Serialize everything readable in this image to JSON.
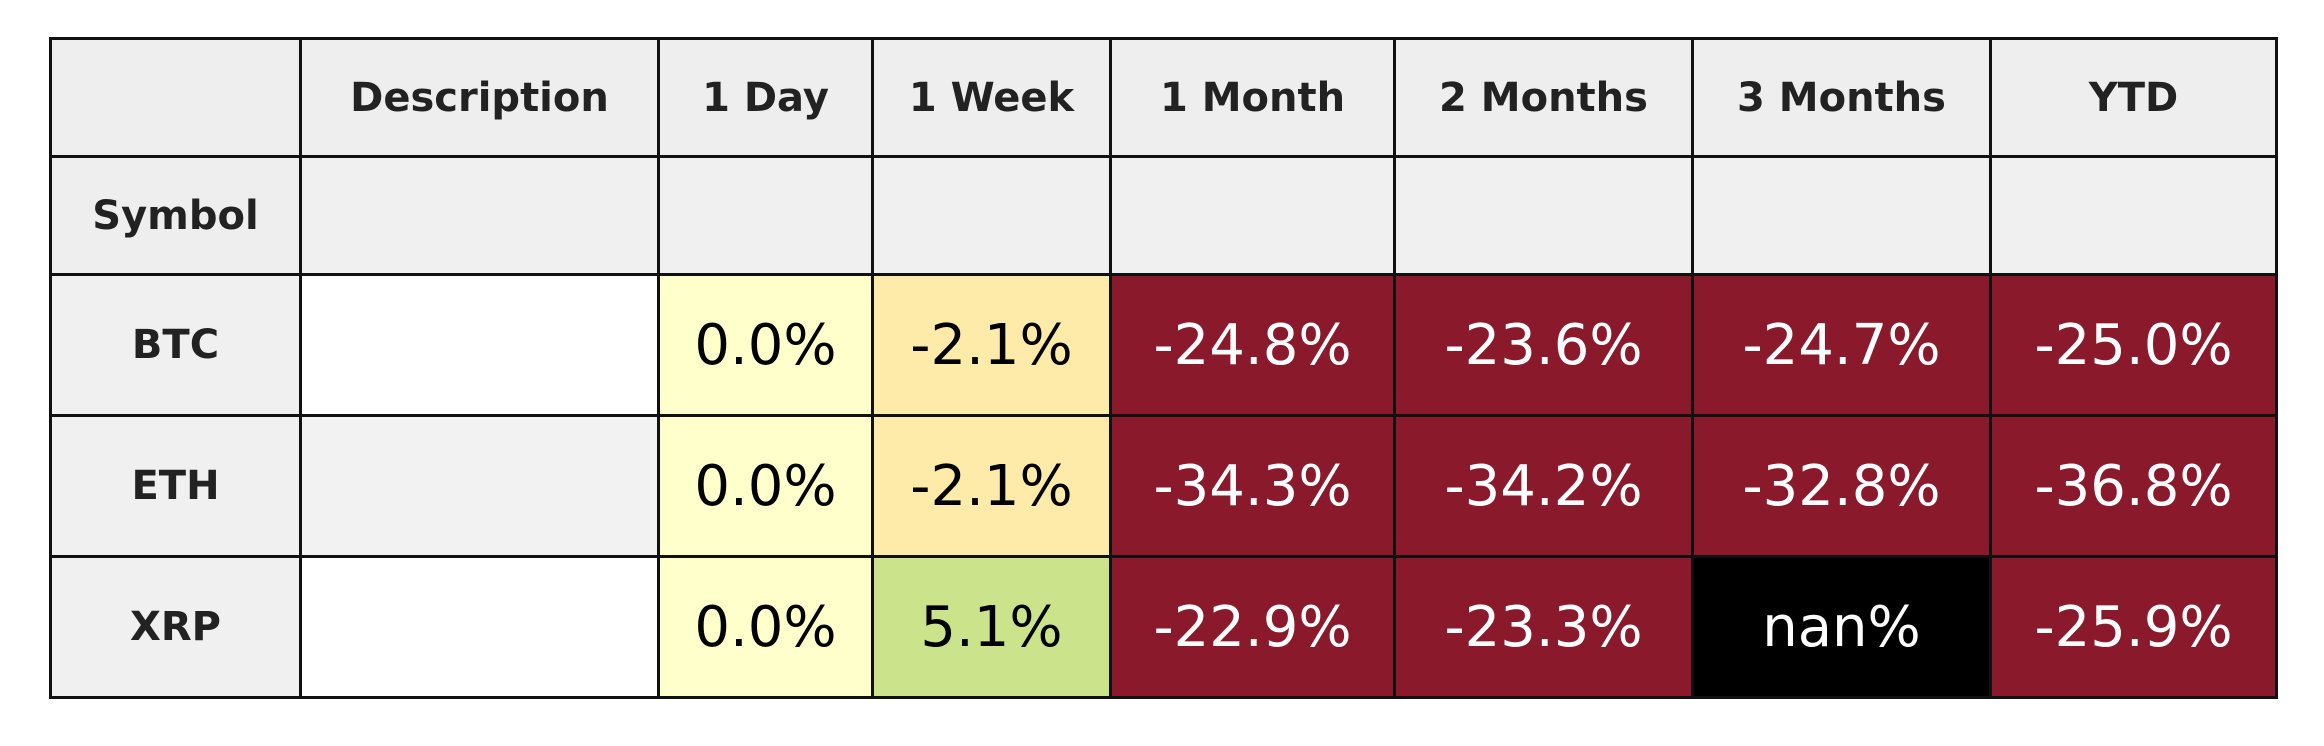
{
  "table": {
    "columns": [
      "Description",
      "1 Day",
      "1 Week",
      "1 Month",
      "2 Months",
      "3 Months",
      "YTD"
    ],
    "index_name": "Symbol",
    "rows": [
      {
        "symbol": "BTC",
        "cells": [
          "0.0%",
          "-2.1%",
          "-24.8%",
          "-23.6%",
          "-24.7%",
          "-25.0%"
        ],
        "colors": [
          "#ffffcc",
          "#feeaa9",
          "#8a1a2b",
          "#8a1a2b",
          "#8a1a2b",
          "#8a1a2b"
        ]
      },
      {
        "symbol": "ETH",
        "cells": [
          "0.0%",
          "-2.1%",
          "-34.3%",
          "-34.2%",
          "-32.8%",
          "-36.8%"
        ],
        "colors": [
          "#ffffcc",
          "#feeaa9",
          "#8a1a2b",
          "#8a1a2b",
          "#8a1a2b",
          "#8a1a2b"
        ]
      },
      {
        "symbol": "XRP",
        "cells": [
          "0.0%",
          "5.1%",
          "-22.9%",
          "-23.3%",
          "nan%",
          "-25.9%"
        ],
        "colors": [
          "#ffffcc",
          "#cbe48c",
          "#8a1a2b",
          "#8a1a2b",
          "#000000",
          "#8a1a2b"
        ]
      }
    ]
  }
}
